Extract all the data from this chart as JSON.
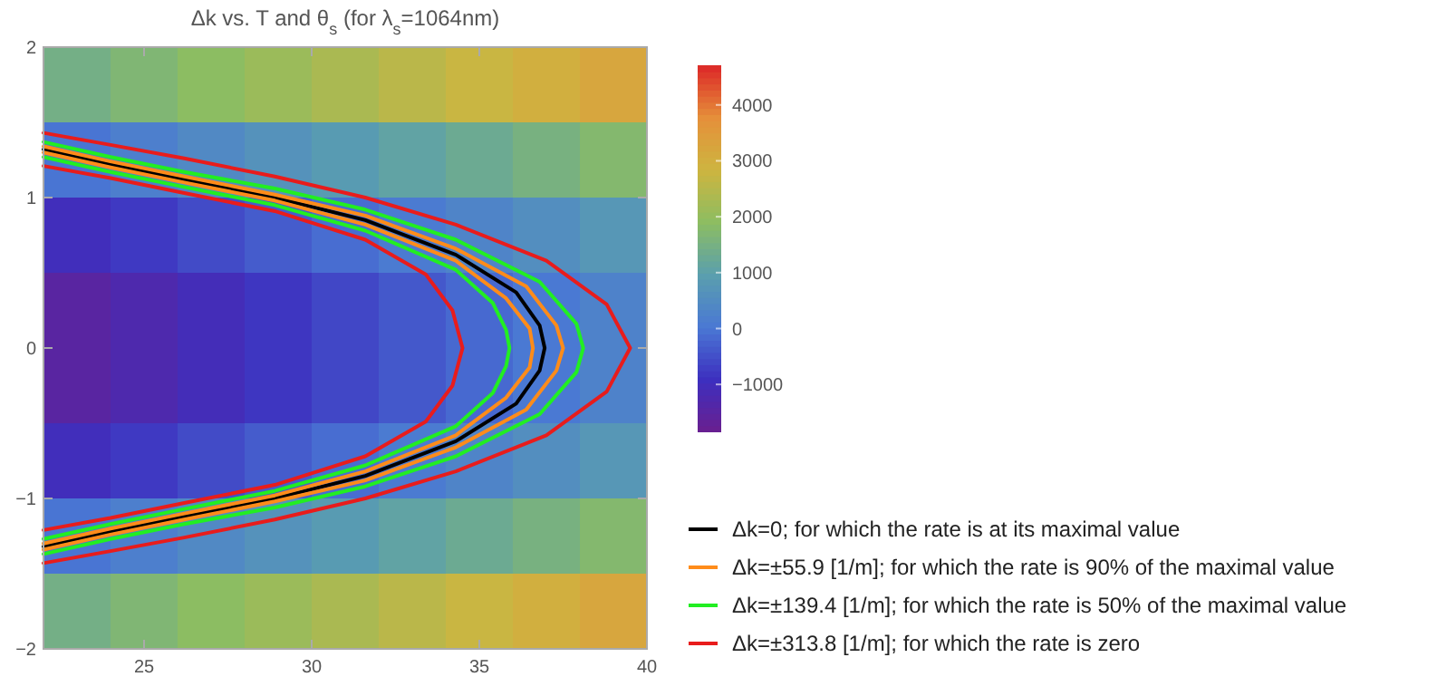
{
  "chart_data": {
    "type": "heatmap",
    "title": "Δk vs. T and θ$_{s}$ (for λ$_{s}$=1064nm)",
    "cells": [
      [
        1460,
        1680,
        1900,
        2120,
        2340,
        2560,
        2780,
        3000,
        3220
      ],
      [
        -10,
        210,
        430,
        650,
        870,
        1090,
        1310,
        1530,
        1750
      ],
      [
        -990,
        -770,
        -550,
        -330,
        -110,
        110,
        330,
        550,
        770
      ],
      [
        -1480,
        -1260,
        -1040,
        -820,
        -600,
        -380,
        -160,
        60,
        280
      ],
      [
        -1480,
        -1260,
        -1040,
        -820,
        -600,
        -380,
        -160,
        60,
        280
      ],
      [
        -990,
        -770,
        -550,
        -330,
        -110,
        110,
        330,
        550,
        770
      ],
      [
        -10,
        210,
        430,
        650,
        870,
        1090,
        1310,
        1530,
        1750
      ],
      [
        1460,
        1680,
        1900,
        2120,
        2340,
        2560,
        2780,
        3000,
        3220
      ]
    ],
    "clim": [
      -1840,
      4710
    ],
    "cticks": [
      {
        "value": -1000,
        "label": "−1000"
      },
      0,
      1000,
      2000,
      3000,
      4000
    ],
    "xlim": [
      22,
      40
    ],
    "xticks": [
      25,
      30,
      35,
      40
    ],
    "ylim": [
      -2,
      2
    ],
    "yticks": [
      {
        "value": -2,
        "label": "−2"
      },
      {
        "value": -1,
        "label": "−1"
      },
      0,
      1,
      2
    ],
    "legend": "bottom right",
    "series": [
      {
        "type": "line",
        "name": "Δk=0; for which the rate is at its maximal value",
        "color": "#000000",
        "x": [
          22,
          24,
          26.2,
          28.9,
          31.6,
          34.3,
          36.1,
          36.8,
          36.95,
          36.8,
          36.1,
          34.3,
          31.6,
          28.9,
          26.2,
          24,
          22
        ],
        "values": [
          1.32,
          1.22,
          1.12,
          1.0,
          0.85,
          0.62,
          0.37,
          0.15,
          0,
          -0.15,
          -0.37,
          -0.62,
          -0.85,
          -1.0,
          -1.12,
          -1.22,
          -1.32
        ]
      },
      {
        "type": "line",
        "name": "Δk=±55.9 [1/m]; for which the rate is 90% of the maximal value",
        "color": "#ff8c1a",
        "x": [
          22,
          24,
          26.2,
          28.9,
          31.6,
          34.3,
          35.8,
          36.5,
          36.6,
          36.5,
          35.8,
          34.3,
          31.6,
          28.9,
          26.2,
          24,
          22,
          null,
          22,
          24,
          26.2,
          28.9,
          31.6,
          34.3,
          36.4,
          37.3,
          37.5,
          37.3,
          36.4,
          34.3,
          31.6,
          28.9,
          26.2,
          24,
          22
        ],
        "values": [
          1.3,
          1.2,
          1.1,
          0.98,
          0.82,
          0.58,
          0.33,
          0.13,
          0,
          -0.13,
          -0.33,
          -0.58,
          -0.82,
          -0.98,
          -1.1,
          -1.2,
          -1.3,
          null,
          1.34,
          1.24,
          1.14,
          1.02,
          0.88,
          0.66,
          0.41,
          0.15,
          0,
          -0.15,
          -0.41,
          -0.66,
          -0.88,
          -1.02,
          -1.14,
          -1.24,
          -1.34
        ]
      },
      {
        "type": "line",
        "name": "Δk=±139.4 [1/m]; for which the rate is 50% of the maximal value",
        "color": "#22ee22",
        "x": [
          22,
          24,
          26.2,
          28.9,
          31.6,
          34.3,
          35.4,
          35.8,
          35.9,
          35.8,
          35.4,
          34.3,
          31.6,
          28.9,
          26.2,
          24,
          22,
          null,
          22,
          24,
          26.2,
          28.9,
          31.6,
          34.3,
          36.8,
          37.9,
          38.1,
          37.9,
          36.8,
          34.3,
          31.6,
          28.9,
          26.2,
          24,
          22
        ],
        "values": [
          1.27,
          1.17,
          1.07,
          0.95,
          0.78,
          0.52,
          0.3,
          0.12,
          0,
          -0.12,
          -0.3,
          -0.52,
          -0.78,
          -0.95,
          -1.07,
          -1.17,
          -1.27,
          null,
          1.37,
          1.27,
          1.17,
          1.06,
          0.92,
          0.72,
          0.44,
          0.16,
          0,
          -0.16,
          -0.44,
          -0.72,
          -0.92,
          -1.06,
          -1.17,
          -1.27,
          -1.37
        ]
      },
      {
        "type": "line",
        "name": "Δk=±313.8 [1/m]; for which the rate is zero",
        "color": "#e81c1c",
        "x": [
          22,
          24,
          26.2,
          28.9,
          31.6,
          33.4,
          34.2,
          34.5,
          34.2,
          33.4,
          31.6,
          28.9,
          26.2,
          24,
          22,
          null,
          22,
          24,
          26.2,
          28.9,
          31.6,
          34.3,
          37,
          38.8,
          39.5,
          38.8,
          37,
          34.3,
          31.6,
          28.9,
          26.2,
          24,
          22
        ],
        "values": [
          1.21,
          1.13,
          1.03,
          0.91,
          0.72,
          0.49,
          0.25,
          0,
          -0.25,
          -0.49,
          -0.72,
          -0.91,
          -1.03,
          -1.13,
          -1.21,
          null,
          1.43,
          1.35,
          1.26,
          1.14,
          1.0,
          0.82,
          0.58,
          0.29,
          0,
          -0.29,
          -0.58,
          -0.82,
          -1.0,
          -1.14,
          -1.26,
          -1.35,
          -1.43
        ]
      }
    ]
  }
}
